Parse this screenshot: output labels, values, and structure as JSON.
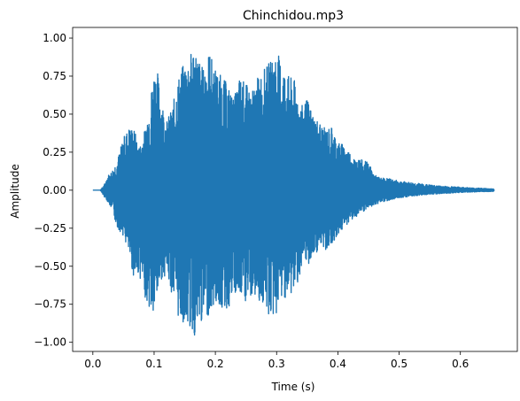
{
  "chart_data": {
    "type": "line",
    "title": "Chinchidou.mp3",
    "xlabel": "Time (s)",
    "ylabel": "Amplitude",
    "xlim": [
      -0.033,
      0.693
    ],
    "ylim": [
      -1.06,
      1.07
    ],
    "xticks": [
      {
        "value": 0.0,
        "label": "0.0"
      },
      {
        "value": 0.1,
        "label": "0.1"
      },
      {
        "value": 0.2,
        "label": "0.2"
      },
      {
        "value": 0.3,
        "label": "0.3"
      },
      {
        "value": 0.4,
        "label": "0.4"
      },
      {
        "value": 0.5,
        "label": "0.5"
      },
      {
        "value": 0.6,
        "label": "0.6"
      }
    ],
    "yticks": [
      {
        "value": 1.0,
        "label": "1.00"
      },
      {
        "value": 0.75,
        "label": "0.75"
      },
      {
        "value": 0.5,
        "label": "0.50"
      },
      {
        "value": 0.25,
        "label": "0.25"
      },
      {
        "value": 0.0,
        "label": "0.00"
      },
      {
        "value": -0.25,
        "label": "−0.25"
      },
      {
        "value": -0.5,
        "label": "−0.50"
      },
      {
        "value": -0.75,
        "label": "−0.75"
      },
      {
        "value": -1.0,
        "label": "−1.00"
      }
    ],
    "grid": false,
    "series": [
      {
        "color": "#1f77b4",
        "envelope": {
          "t": [
            0.0,
            0.012,
            0.018,
            0.025,
            0.03,
            0.04,
            0.05,
            0.06,
            0.068,
            0.075,
            0.085,
            0.095,
            0.1,
            0.105,
            0.11,
            0.12,
            0.13,
            0.14,
            0.15,
            0.16,
            0.165,
            0.17,
            0.18,
            0.19,
            0.2,
            0.21,
            0.22,
            0.23,
            0.24,
            0.25,
            0.26,
            0.27,
            0.28,
            0.29,
            0.3,
            0.31,
            0.32,
            0.33,
            0.34,
            0.35,
            0.36,
            0.37,
            0.38,
            0.39,
            0.4,
            0.41,
            0.42,
            0.43,
            0.44,
            0.45,
            0.46,
            0.47,
            0.48,
            0.5,
            0.52,
            0.54,
            0.56,
            0.58,
            0.6,
            0.62,
            0.64,
            0.655
          ],
          "upper": [
            0.0,
            0.0,
            0.03,
            0.1,
            0.12,
            0.2,
            0.35,
            0.42,
            0.4,
            0.28,
            0.4,
            0.65,
            0.8,
            0.8,
            0.65,
            0.45,
            0.55,
            0.75,
            0.85,
            0.9,
            0.97,
            0.9,
            0.8,
            0.92,
            0.8,
            0.75,
            0.7,
            0.6,
            0.75,
            0.7,
            0.65,
            0.75,
            0.8,
            0.85,
            0.92,
            0.82,
            0.75,
            0.72,
            0.55,
            0.6,
            0.5,
            0.45,
            0.4,
            0.42,
            0.32,
            0.3,
            0.25,
            0.2,
            0.2,
            0.18,
            0.1,
            0.08,
            0.08,
            0.06,
            0.05,
            0.04,
            0.03,
            0.025,
            0.02,
            0.015,
            0.012,
            0.008
          ],
          "lower": [
            0.0,
            0.0,
            -0.04,
            -0.08,
            -0.12,
            -0.25,
            -0.3,
            -0.45,
            -0.6,
            -0.55,
            -0.7,
            -0.82,
            -0.85,
            -0.72,
            -0.6,
            -0.55,
            -0.7,
            -0.85,
            -0.88,
            -0.92,
            -0.97,
            -0.95,
            -0.85,
            -0.82,
            -0.75,
            -0.78,
            -0.8,
            -0.7,
            -0.72,
            -0.75,
            -0.7,
            -0.72,
            -0.78,
            -0.85,
            -0.82,
            -0.7,
            -0.72,
            -0.65,
            -0.55,
            -0.5,
            -0.45,
            -0.38,
            -0.4,
            -0.35,
            -0.3,
            -0.25,
            -0.2,
            -0.18,
            -0.15,
            -0.12,
            -0.1,
            -0.08,
            -0.07,
            -0.05,
            -0.04,
            -0.03,
            -0.025,
            -0.02,
            -0.015,
            -0.012,
            -0.01,
            -0.008
          ]
        }
      }
    ]
  }
}
